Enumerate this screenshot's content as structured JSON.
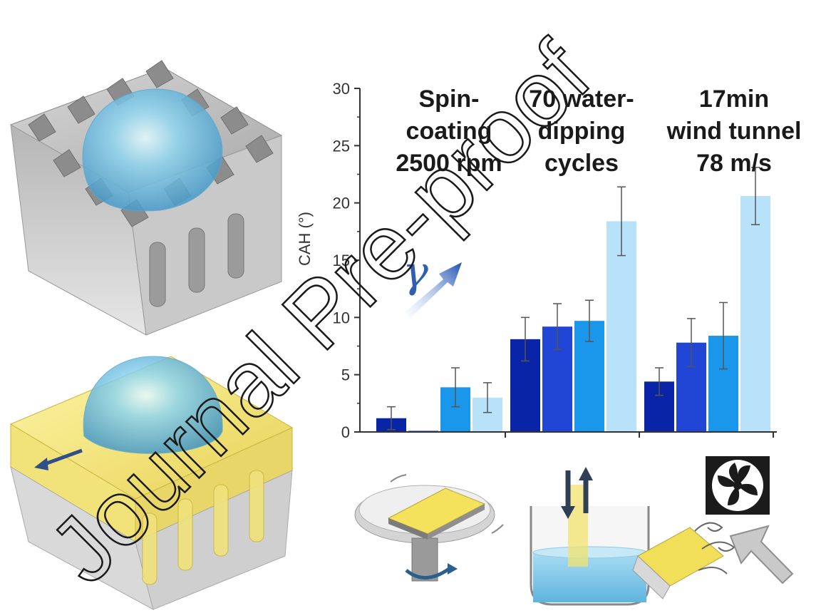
{
  "watermark": "Journal Pre-proof",
  "gamma_symbol": "γ",
  "colors": {
    "series": [
      "#0a24a8",
      "#2146d6",
      "#1a97ea",
      "#b7e2f9"
    ],
    "errorbar": "#555555",
    "axis": "#333333"
  },
  "icons": [
    "surface-3d-pillar-icon",
    "coated-surface-droplet-icon",
    "spin-coater-icon",
    "beaker-dipping-icon",
    "fan-icon",
    "wind-arrow-icon"
  ],
  "chart_data": {
    "type": "bar",
    "ylabel": "CAH (°)",
    "xlabel": "",
    "ylim": [
      0,
      30
    ],
    "yticks": [
      0,
      5,
      10,
      15,
      20,
      25,
      30
    ],
    "grid": false,
    "categories": [
      "Spin-coating 2500 rpm",
      "70 water-dipping cycles",
      "17min wind tunnel 78 m/s"
    ],
    "category_label_lines": [
      [
        "Spin-",
        "coating",
        "2500 rpm"
      ],
      [
        "70 water-",
        "dipping",
        "cycles"
      ],
      [
        "17min",
        "wind tunnel",
        "78 m/s"
      ]
    ],
    "series": [
      {
        "values": [
          1.2,
          8.1,
          4.4
        ],
        "errors": [
          1.0,
          1.9,
          1.2
        ]
      },
      {
        "values": [
          0.1,
          9.2,
          7.8
        ],
        "errors": [
          0.0,
          2.0,
          2.1
        ]
      },
      {
        "values": [
          3.9,
          9.7,
          8.4
        ],
        "errors": [
          1.7,
          1.8,
          2.9
        ]
      },
      {
        "values": [
          3.0,
          18.4,
          20.6
        ],
        "errors": [
          1.3,
          3.0,
          2.5
        ]
      }
    ]
  }
}
